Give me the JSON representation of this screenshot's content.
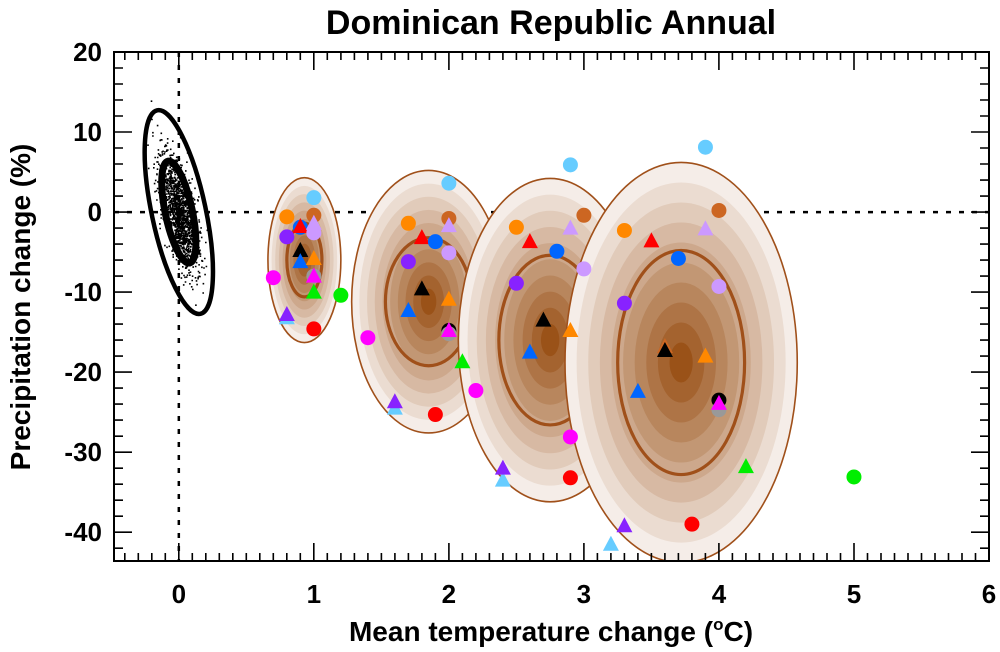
{
  "chart_data": {
    "type": "scatter",
    "title": "Dominican Republic Annual",
    "xlabel": "Mean temperature change (",
    "xlabel_sup": "o",
    "xlabel_end": "C)",
    "ylabel": "Precipitation change (%)",
    "xlim": [
      -0.48,
      6
    ],
    "ylim": [
      -43.6,
      20
    ],
    "xticks": [
      0,
      1,
      2,
      3,
      4,
      5,
      6
    ],
    "xtick_labels": [
      "0",
      "1",
      "2",
      "3",
      "4",
      "5",
      "6"
    ],
    "yticks": [
      20,
      10,
      0,
      -10,
      -20,
      -30,
      -40
    ],
    "ytick_labels": [
      "20",
      "10",
      "0",
      "-10",
      "-20",
      "-30",
      "-40"
    ],
    "x_minor_step": 0.1,
    "y_minor_step": 2,
    "reference_lines": {
      "x": 0,
      "y": 0,
      "style": "dotted"
    },
    "natural_variability": {
      "center": [
        0.0,
        0.0
      ],
      "tilt_deg": -12,
      "ellipses": [
        {
          "sx": 0.1,
          "sy": 6.5
        },
        {
          "sx": 0.2,
          "sy": 13
        }
      ],
      "scatter_color": "#000000"
    },
    "distributions": [
      {
        "name": "period-1",
        "center": [
          0.93,
          -6.0
        ],
        "sx": 0.27,
        "sy": 10.3,
        "contour_sx": 0.13,
        "contour_sy": 4.6
      },
      {
        "name": "period-2",
        "center": [
          1.85,
          -11.2
        ],
        "sx": 0.57,
        "sy": 16.4,
        "contour_sx": 0.32,
        "contour_sy": 8.0
      },
      {
        "name": "period-3",
        "center": [
          2.75,
          -16.0
        ],
        "sx": 0.68,
        "sy": 20.2,
        "contour_sx": 0.38,
        "contour_sy": 10.6
      },
      {
        "name": "period-4",
        "center": [
          3.72,
          -18.8
        ],
        "sx": 0.86,
        "sy": 25.0,
        "contour_sx": 0.47,
        "contour_sy": 14.0
      }
    ],
    "colors": {
      "lightblue": "#66ccff",
      "orange": "#ff8800",
      "chocolate": "#cc6622",
      "blue": "#0066ff",
      "red": "#ff0000",
      "lavender": "#cc99ff",
      "purple": "#8822ff",
      "black": "#000000",
      "magenta": "#ff00ff",
      "green": "#00ee00",
      "grey": "#999999",
      "ellipse_outline": "#a0501a",
      "ellipse_center": "#9a5218",
      "ellipse_edge": "#f5ede8"
    },
    "series": [
      {
        "name": "period-1",
        "points": [
          {
            "x": 1.0,
            "y": 1.8,
            "m": "circle",
            "c": "lightblue"
          },
          {
            "x": 0.8,
            "y": -0.6,
            "m": "circle",
            "c": "orange"
          },
          {
            "x": 1.0,
            "y": -0.4,
            "m": "circle",
            "c": "chocolate"
          },
          {
            "x": 0.9,
            "y": -1.9,
            "m": "circle",
            "c": "blue"
          },
          {
            "x": 0.9,
            "y": -1.9,
            "m": "triangle",
            "c": "red"
          },
          {
            "x": 1.0,
            "y": -1.5,
            "m": "triangle",
            "c": "lavender"
          },
          {
            "x": 1.0,
            "y": -2.6,
            "m": "circle",
            "c": "lavender"
          },
          {
            "x": 0.8,
            "y": -3.1,
            "m": "circle",
            "c": "purple"
          },
          {
            "x": 0.9,
            "y": -4.9,
            "m": "triangle",
            "c": "black"
          },
          {
            "x": 0.9,
            "y": -6.3,
            "m": "triangle",
            "c": "blue"
          },
          {
            "x": 1.0,
            "y": -5.9,
            "m": "triangle",
            "c": "orange"
          },
          {
            "x": 0.7,
            "y": -8.2,
            "m": "circle",
            "c": "magenta"
          },
          {
            "x": 1.0,
            "y": -8.0,
            "m": "circle",
            "c": "grey"
          },
          {
            "x": 1.0,
            "y": -8.1,
            "m": "triangle",
            "c": "magenta"
          },
          {
            "x": 1.0,
            "y": -10.1,
            "m": "triangle",
            "c": "green"
          },
          {
            "x": 1.2,
            "y": -10.4,
            "m": "circle",
            "c": "green"
          },
          {
            "x": 0.8,
            "y": -13.3,
            "m": "triangle",
            "c": "lightblue"
          },
          {
            "x": 0.8,
            "y": -12.9,
            "m": "triangle",
            "c": "purple"
          },
          {
            "x": 1.0,
            "y": -14.6,
            "m": "circle",
            "c": "red"
          },
          {
            "x": 1.4,
            "y": -15.7,
            "m": "circle",
            "c": "magenta"
          }
        ]
      },
      {
        "name": "period-2",
        "points": [
          {
            "x": 2.0,
            "y": 3.6,
            "m": "circle",
            "c": "lightblue"
          },
          {
            "x": 1.7,
            "y": -1.4,
            "m": "circle",
            "c": "orange"
          },
          {
            "x": 2.0,
            "y": -0.8,
            "m": "circle",
            "c": "chocolate"
          },
          {
            "x": 2.0,
            "y": -1.8,
            "m": "triangle",
            "c": "lavender"
          },
          {
            "x": 1.8,
            "y": -3.3,
            "m": "triangle",
            "c": "red"
          },
          {
            "x": 1.9,
            "y": -3.7,
            "m": "circle",
            "c": "blue"
          },
          {
            "x": 2.0,
            "y": -5.1,
            "m": "circle",
            "c": "lavender"
          },
          {
            "x": 1.7,
            "y": -6.2,
            "m": "circle",
            "c": "purple"
          },
          {
            "x": 1.8,
            "y": -9.7,
            "m": "triangle",
            "c": "black"
          },
          {
            "x": 2.0,
            "y": -11.0,
            "m": "triangle",
            "c": "orange"
          },
          {
            "x": 1.7,
            "y": -12.4,
            "m": "triangle",
            "c": "blue"
          },
          {
            "x": 2.0,
            "y": -14.8,
            "m": "circle",
            "c": "black"
          },
          {
            "x": 2.0,
            "y": -15.2,
            "m": "circle",
            "c": "grey"
          },
          {
            "x": 2.0,
            "y": -14.9,
            "m": "triangle",
            "c": "magenta"
          },
          {
            "x": 2.1,
            "y": -18.8,
            "m": "triangle",
            "c": "green"
          },
          {
            "x": 2.2,
            "y": -22.3,
            "m": "circle",
            "c": "magenta"
          },
          {
            "x": 1.6,
            "y": -24.6,
            "m": "triangle",
            "c": "lightblue"
          },
          {
            "x": 1.6,
            "y": -23.8,
            "m": "triangle",
            "c": "purple"
          },
          {
            "x": 1.9,
            "y": -25.3,
            "m": "circle",
            "c": "red"
          }
        ]
      },
      {
        "name": "period-3",
        "points": [
          {
            "x": 2.9,
            "y": 5.9,
            "m": "circle",
            "c": "lightblue"
          },
          {
            "x": 3.0,
            "y": -0.4,
            "m": "circle",
            "c": "chocolate"
          },
          {
            "x": 2.5,
            "y": -1.9,
            "m": "circle",
            "c": "orange"
          },
          {
            "x": 2.9,
            "y": -2.1,
            "m": "triangle",
            "c": "lavender"
          },
          {
            "x": 2.6,
            "y": -3.8,
            "m": "triangle",
            "c": "red"
          },
          {
            "x": 2.8,
            "y": -4.9,
            "m": "circle",
            "c": "blue"
          },
          {
            "x": 3.0,
            "y": -7.1,
            "m": "circle",
            "c": "lavender"
          },
          {
            "x": 2.5,
            "y": -8.9,
            "m": "circle",
            "c": "purple"
          },
          {
            "x": 2.7,
            "y": -13.6,
            "m": "triangle",
            "c": "black"
          },
          {
            "x": 2.9,
            "y": -14.9,
            "m": "triangle",
            "c": "orange"
          },
          {
            "x": 2.6,
            "y": -17.6,
            "m": "triangle",
            "c": "blue"
          },
          {
            "x": 2.9,
            "y": -28.1,
            "m": "circle",
            "c": "magenta"
          },
          {
            "x": 2.4,
            "y": -33.6,
            "m": "triangle",
            "c": "lightblue"
          },
          {
            "x": 2.4,
            "y": -32.1,
            "m": "triangle",
            "c": "purple"
          },
          {
            "x": 2.9,
            "y": -33.2,
            "m": "circle",
            "c": "red"
          }
        ]
      },
      {
        "name": "period-4",
        "points": [
          {
            "x": 3.9,
            "y": 8.1,
            "m": "circle",
            "c": "lightblue"
          },
          {
            "x": 4.0,
            "y": 0.2,
            "m": "circle",
            "c": "chocolate"
          },
          {
            "x": 3.3,
            "y": -2.3,
            "m": "circle",
            "c": "orange"
          },
          {
            "x": 3.9,
            "y": -2.2,
            "m": "triangle",
            "c": "lavender"
          },
          {
            "x": 3.5,
            "y": -3.7,
            "m": "triangle",
            "c": "red"
          },
          {
            "x": 3.7,
            "y": -5.8,
            "m": "circle",
            "c": "blue"
          },
          {
            "x": 4.0,
            "y": -9.3,
            "m": "circle",
            "c": "lavender"
          },
          {
            "x": 3.3,
            "y": -11.4,
            "m": "circle",
            "c": "purple"
          },
          {
            "x": 3.6,
            "y": -16.9,
            "m": "triangle",
            "c": "chocolate"
          },
          {
            "x": 3.6,
            "y": -17.4,
            "m": "triangle",
            "c": "black"
          },
          {
            "x": 3.9,
            "y": -18.1,
            "m": "triangle",
            "c": "orange"
          },
          {
            "x": 3.4,
            "y": -22.5,
            "m": "triangle",
            "c": "blue"
          },
          {
            "x": 4.0,
            "y": -23.5,
            "m": "circle",
            "c": "black"
          },
          {
            "x": 4.0,
            "y": -24.7,
            "m": "circle",
            "c": "grey"
          },
          {
            "x": 4.0,
            "y": -24.0,
            "m": "triangle",
            "c": "magenta"
          },
          {
            "x": 4.2,
            "y": -31.9,
            "m": "triangle",
            "c": "green"
          },
          {
            "x": 5.0,
            "y": -33.1,
            "m": "circle",
            "c": "green"
          },
          {
            "x": 3.3,
            "y": -39.3,
            "m": "triangle",
            "c": "purple"
          },
          {
            "x": 3.2,
            "y": -41.6,
            "m": "triangle",
            "c": "lightblue"
          },
          {
            "x": 3.8,
            "y": -39.0,
            "m": "circle",
            "c": "red"
          }
        ]
      }
    ]
  }
}
